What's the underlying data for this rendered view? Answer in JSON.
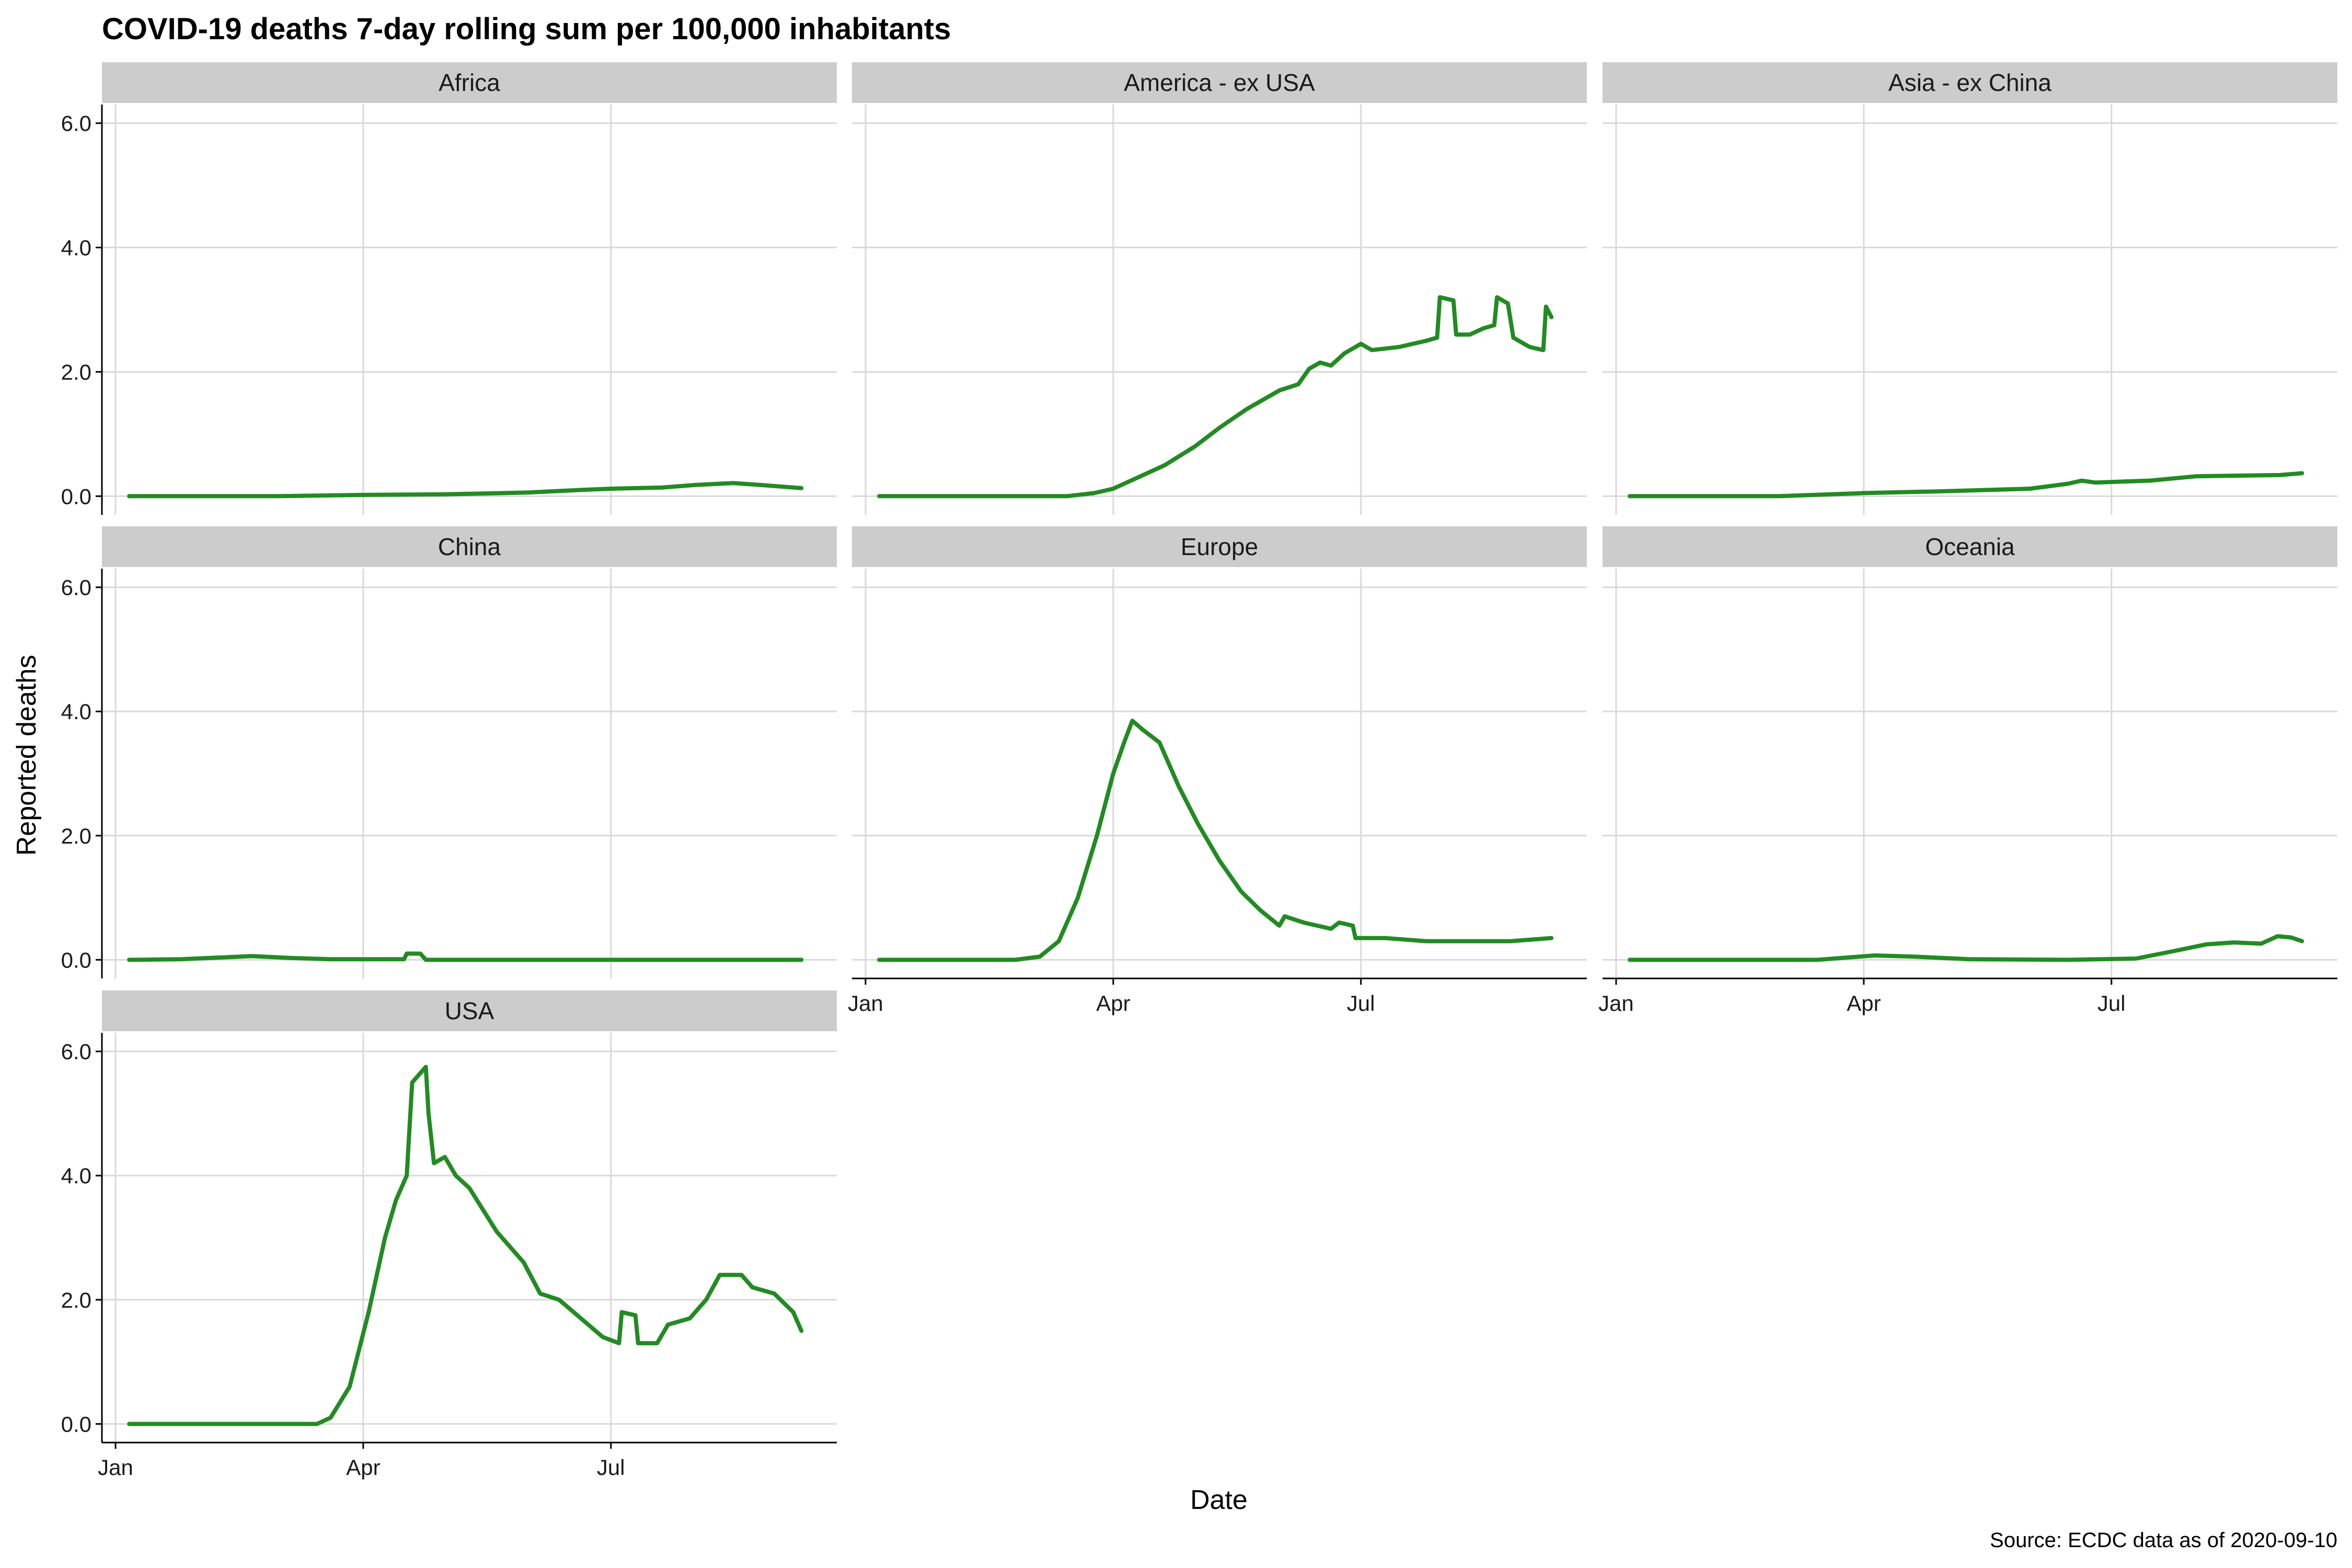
{
  "title": "COVID-19 deaths 7-day rolling sum per 100,000 inhabitants",
  "caption": "Source: ECDC data as of 2020-09-10",
  "colors": {
    "line": "#228B22",
    "strip_background": "#cccccc",
    "grid": "#d9d9d9",
    "axis": "#000000"
  },
  "chart_data": {
    "type": "line",
    "facet_layout": "3 columns, facets wrapped",
    "xlabel": "Date",
    "ylabel": "Reported deaths",
    "x_ticks": [
      {
        "date": "2020-01-01",
        "label": "Jan"
      },
      {
        "date": "2020-04-01",
        "label": "Apr"
      },
      {
        "date": "2020-07-01",
        "label": "Jul"
      }
    ],
    "y_ticks": [
      0.0,
      2.0,
      4.0,
      6.0
    ],
    "y_tick_labels": [
      "0.0",
      "2.0",
      "4.0",
      "6.0"
    ],
    "xlim": [
      "2019-12-27",
      "2020-09-22"
    ],
    "ylim": [
      -0.3,
      6.3
    ],
    "grid": true,
    "legend": "none",
    "facets": [
      {
        "name": "Africa",
        "points": [
          [
            "2020-01-06",
            0.0
          ],
          [
            "2020-03-01",
            0.0
          ],
          [
            "2020-04-01",
            0.02
          ],
          [
            "2020-05-01",
            0.03
          ],
          [
            "2020-06-01",
            0.06
          ],
          [
            "2020-06-20",
            0.1
          ],
          [
            "2020-07-01",
            0.12
          ],
          [
            "2020-07-20",
            0.14
          ],
          [
            "2020-08-01",
            0.18
          ],
          [
            "2020-08-15",
            0.21
          ],
          [
            "2020-08-25",
            0.18
          ],
          [
            "2020-09-09",
            0.13
          ]
        ]
      },
      {
        "name": "America - ex USA",
        "points": [
          [
            "2020-01-06",
            0.0
          ],
          [
            "2020-03-15",
            0.0
          ],
          [
            "2020-03-25",
            0.05
          ],
          [
            "2020-04-01",
            0.12
          ],
          [
            "2020-04-10",
            0.3
          ],
          [
            "2020-04-20",
            0.5
          ],
          [
            "2020-05-01",
            0.8
          ],
          [
            "2020-05-10",
            1.1
          ],
          [
            "2020-05-20",
            1.4
          ],
          [
            "2020-06-01",
            1.7
          ],
          [
            "2020-06-08",
            1.8
          ],
          [
            "2020-06-12",
            2.05
          ],
          [
            "2020-06-16",
            2.15
          ],
          [
            "2020-06-20",
            2.1
          ],
          [
            "2020-06-25",
            2.3
          ],
          [
            "2020-07-01",
            2.45
          ],
          [
            "2020-07-05",
            2.35
          ],
          [
            "2020-07-15",
            2.4
          ],
          [
            "2020-07-25",
            2.5
          ],
          [
            "2020-07-29",
            2.55
          ],
          [
            "2020-07-30",
            3.2
          ],
          [
            "2020-08-04",
            3.15
          ],
          [
            "2020-08-05",
            2.6
          ],
          [
            "2020-08-10",
            2.6
          ],
          [
            "2020-08-15",
            2.7
          ],
          [
            "2020-08-19",
            2.75
          ],
          [
            "2020-08-20",
            3.2
          ],
          [
            "2020-08-24",
            3.1
          ],
          [
            "2020-08-26",
            2.55
          ],
          [
            "2020-09-01",
            2.4
          ],
          [
            "2020-09-06",
            2.35
          ],
          [
            "2020-09-07",
            3.05
          ],
          [
            "2020-09-09",
            2.88
          ]
        ]
      },
      {
        "name": "Asia - ex China",
        "points": [
          [
            "2020-01-06",
            0.0
          ],
          [
            "2020-03-01",
            0.0
          ],
          [
            "2020-04-01",
            0.05
          ],
          [
            "2020-05-01",
            0.08
          ],
          [
            "2020-06-01",
            0.12
          ],
          [
            "2020-06-15",
            0.2
          ],
          [
            "2020-06-20",
            0.25
          ],
          [
            "2020-06-25",
            0.22
          ],
          [
            "2020-07-15",
            0.25
          ],
          [
            "2020-08-01",
            0.32
          ],
          [
            "2020-08-15",
            0.33
          ],
          [
            "2020-09-01",
            0.34
          ],
          [
            "2020-09-09",
            0.37
          ]
        ]
      },
      {
        "name": "China",
        "points": [
          [
            "2020-01-06",
            0.0
          ],
          [
            "2020-01-25",
            0.01
          ],
          [
            "2020-02-10",
            0.04
          ],
          [
            "2020-02-20",
            0.06
          ],
          [
            "2020-03-05",
            0.03
          ],
          [
            "2020-03-20",
            0.01
          ],
          [
            "2020-04-16",
            0.01
          ],
          [
            "2020-04-17",
            0.1
          ],
          [
            "2020-04-22",
            0.1
          ],
          [
            "2020-04-24",
            0.0
          ],
          [
            "2020-09-09",
            0.0
          ]
        ]
      },
      {
        "name": "Europe",
        "points": [
          [
            "2020-01-06",
            0.0
          ],
          [
            "2020-02-25",
            0.0
          ],
          [
            "2020-03-05",
            0.05
          ],
          [
            "2020-03-12",
            0.3
          ],
          [
            "2020-03-19",
            1.0
          ],
          [
            "2020-03-26",
            2.0
          ],
          [
            "2020-04-01",
            3.0
          ],
          [
            "2020-04-05",
            3.5
          ],
          [
            "2020-04-08",
            3.85
          ],
          [
            "2020-04-12",
            3.7
          ],
          [
            "2020-04-18",
            3.5
          ],
          [
            "2020-04-25",
            2.8
          ],
          [
            "2020-05-02",
            2.2
          ],
          [
            "2020-05-10",
            1.6
          ],
          [
            "2020-05-18",
            1.1
          ],
          [
            "2020-05-25",
            0.8
          ],
          [
            "2020-06-01",
            0.55
          ],
          [
            "2020-06-03",
            0.7
          ],
          [
            "2020-06-10",
            0.6
          ],
          [
            "2020-06-20",
            0.5
          ],
          [
            "2020-06-23",
            0.6
          ],
          [
            "2020-06-28",
            0.55
          ],
          [
            "2020-06-29",
            0.35
          ],
          [
            "2020-07-10",
            0.35
          ],
          [
            "2020-07-25",
            0.3
          ],
          [
            "2020-08-10",
            0.3
          ],
          [
            "2020-08-25",
            0.3
          ],
          [
            "2020-09-09",
            0.35
          ]
        ]
      },
      {
        "name": "Oceania",
        "points": [
          [
            "2020-01-06",
            0.0
          ],
          [
            "2020-03-15",
            0.0
          ],
          [
            "2020-04-05",
            0.07
          ],
          [
            "2020-04-20",
            0.05
          ],
          [
            "2020-05-10",
            0.01
          ],
          [
            "2020-06-15",
            0.0
          ],
          [
            "2020-07-10",
            0.02
          ],
          [
            "2020-07-25",
            0.15
          ],
          [
            "2020-08-05",
            0.25
          ],
          [
            "2020-08-15",
            0.28
          ],
          [
            "2020-08-25",
            0.26
          ],
          [
            "2020-08-31",
            0.38
          ],
          [
            "2020-09-05",
            0.36
          ],
          [
            "2020-09-09",
            0.3
          ]
        ]
      },
      {
        "name": "USA",
        "points": [
          [
            "2020-01-06",
            0.0
          ],
          [
            "2020-03-15",
            0.0
          ],
          [
            "2020-03-20",
            0.1
          ],
          [
            "2020-03-27",
            0.6
          ],
          [
            "2020-04-03",
            1.8
          ],
          [
            "2020-04-09",
            3.0
          ],
          [
            "2020-04-13",
            3.6
          ],
          [
            "2020-04-17",
            4.0
          ],
          [
            "2020-04-19",
            5.5
          ],
          [
            "2020-04-24",
            5.75
          ],
          [
            "2020-04-25",
            5.0
          ],
          [
            "2020-04-27",
            4.2
          ],
          [
            "2020-05-01",
            4.3
          ],
          [
            "2020-05-05",
            4.0
          ],
          [
            "2020-05-10",
            3.8
          ],
          [
            "2020-05-20",
            3.1
          ],
          [
            "2020-05-30",
            2.6
          ],
          [
            "2020-06-05",
            2.1
          ],
          [
            "2020-06-12",
            2.0
          ],
          [
            "2020-06-20",
            1.7
          ],
          [
            "2020-06-28",
            1.4
          ],
          [
            "2020-07-04",
            1.3
          ],
          [
            "2020-07-05",
            1.8
          ],
          [
            "2020-07-10",
            1.75
          ],
          [
            "2020-07-11",
            1.3
          ],
          [
            "2020-07-18",
            1.3
          ],
          [
            "2020-07-22",
            1.6
          ],
          [
            "2020-07-30",
            1.7
          ],
          [
            "2020-08-05",
            2.0
          ],
          [
            "2020-08-10",
            2.4
          ],
          [
            "2020-08-18",
            2.4
          ],
          [
            "2020-08-22",
            2.2
          ],
          [
            "2020-08-30",
            2.1
          ],
          [
            "2020-09-06",
            1.8
          ],
          [
            "2020-09-09",
            1.5
          ]
        ]
      }
    ]
  }
}
